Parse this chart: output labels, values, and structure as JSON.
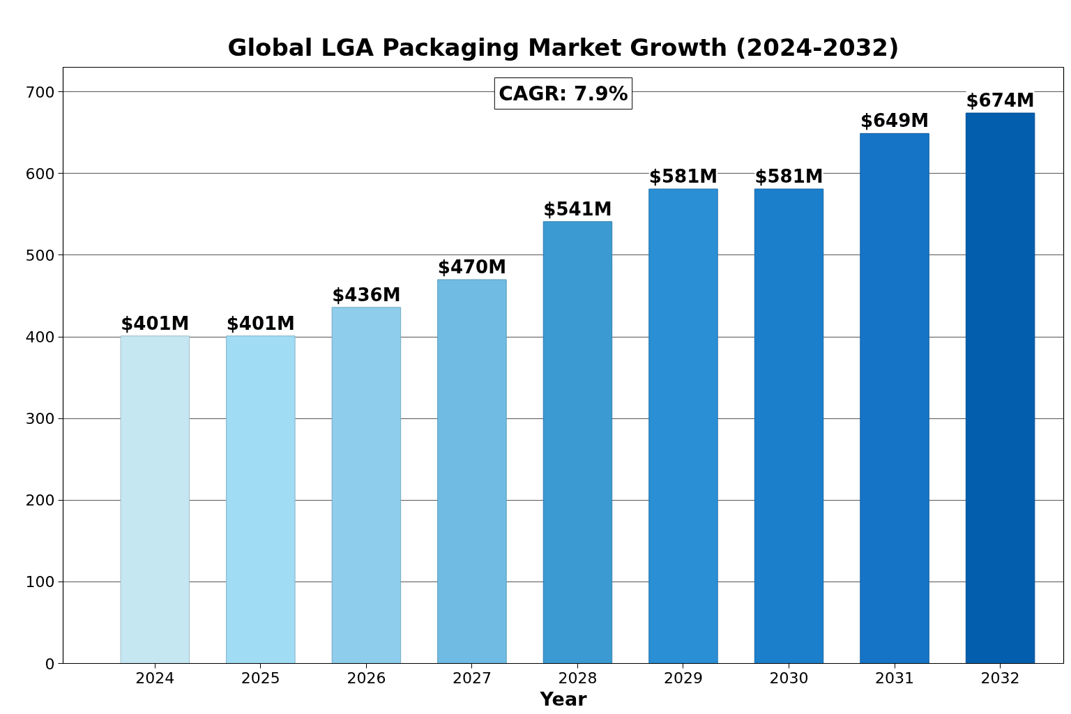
{
  "chart_data": {
    "type": "bar",
    "title": "Global LGA Packaging Market Growth (2024-2032)",
    "xlabel": "Year",
    "categories": [
      "2024",
      "2025",
      "2026",
      "2027",
      "2028",
      "2029",
      "2030",
      "2031",
      "2032"
    ],
    "values": [
      401,
      401,
      436,
      470,
      541,
      581,
      581,
      649,
      674
    ],
    "value_labels": [
      "$401M",
      "$401M",
      "$436M",
      "$470M",
      "$541M",
      "$581M",
      "$581M",
      "$649M",
      "$674M"
    ],
    "colors": [
      "#c4e7f2",
      "#a0dcf4",
      "#8ecdec",
      "#6fbbe3",
      "#3b9ad2",
      "#2a8fd4",
      "#1c7fcb",
      "#1574c6",
      "#035eae"
    ],
    "ylim": [
      0,
      730
    ],
    "yticks": [
      0,
      100,
      200,
      300,
      400,
      500,
      600,
      700
    ],
    "grid": "y",
    "annotations": [
      "CAGR: 7.9%"
    ]
  }
}
